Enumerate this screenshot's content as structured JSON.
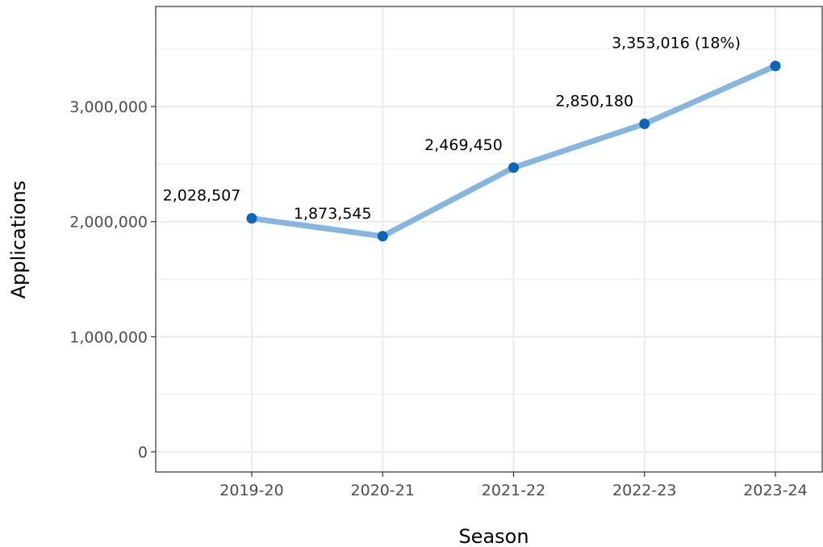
{
  "chart_data": {
    "type": "line",
    "xlabel": "Season",
    "ylabel": "Applications",
    "categories": [
      "2019-20",
      "2020-21",
      "2021-22",
      "2022-23",
      "2023-24"
    ],
    "values": [
      2028507,
      1873545,
      2469450,
      2850180,
      3353016
    ],
    "point_labels": [
      "2,028,507",
      "1,873,545",
      "2,469,450",
      "2,850,180",
      "3,353,016 (18%)"
    ],
    "yticks": [
      0,
      1000000,
      2000000,
      3000000
    ],
    "ytick_labels": [
      "0",
      "1,000,000",
      "2,000,000",
      "3,000,000"
    ],
    "ylim": [
      -175000,
      3870000
    ],
    "grid": true,
    "legend": "none",
    "colors": {
      "line": "#86b6df",
      "point": "#0a66b8",
      "grid": "#ebebeb",
      "panel_border": "#333333"
    }
  }
}
